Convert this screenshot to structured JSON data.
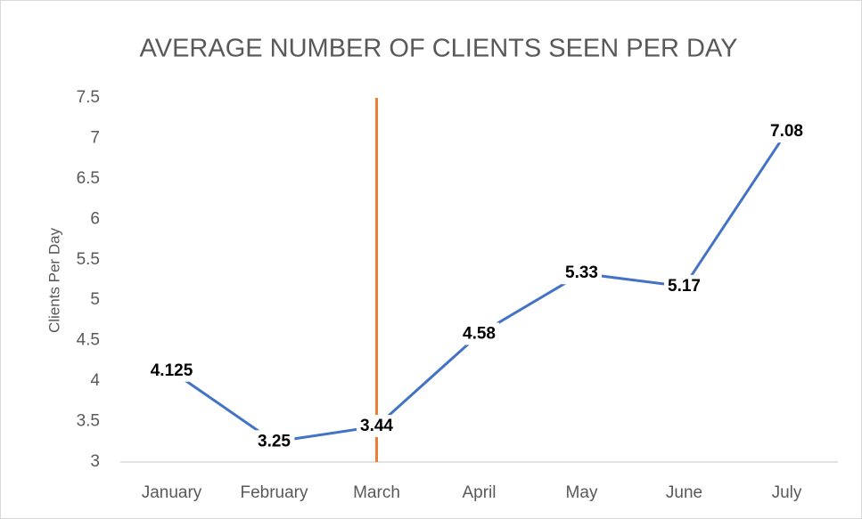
{
  "chart_data": {
    "type": "line",
    "title": "AVERAGE NUMBER OF CLIENTS SEEN PER DAY",
    "y_label": "Clients Per Day",
    "categories": [
      "January",
      "February",
      "March",
      "April",
      "May",
      "June",
      "July"
    ],
    "series": [
      {
        "name": "Clients Per Day",
        "color": "#4472c4",
        "values": [
          4.125,
          3.25,
          3.44,
          4.58,
          5.33,
          5.17,
          7.08
        ]
      }
    ],
    "ylim": [
      3,
      7.5
    ],
    "yticks": [
      3,
      3.5,
      4,
      4.5,
      5,
      5.5,
      6,
      6.5,
      7,
      7.5
    ],
    "grid": false,
    "data_labels": true,
    "reference_line": {
      "category_index": 2,
      "color": "#ed7d31"
    }
  }
}
